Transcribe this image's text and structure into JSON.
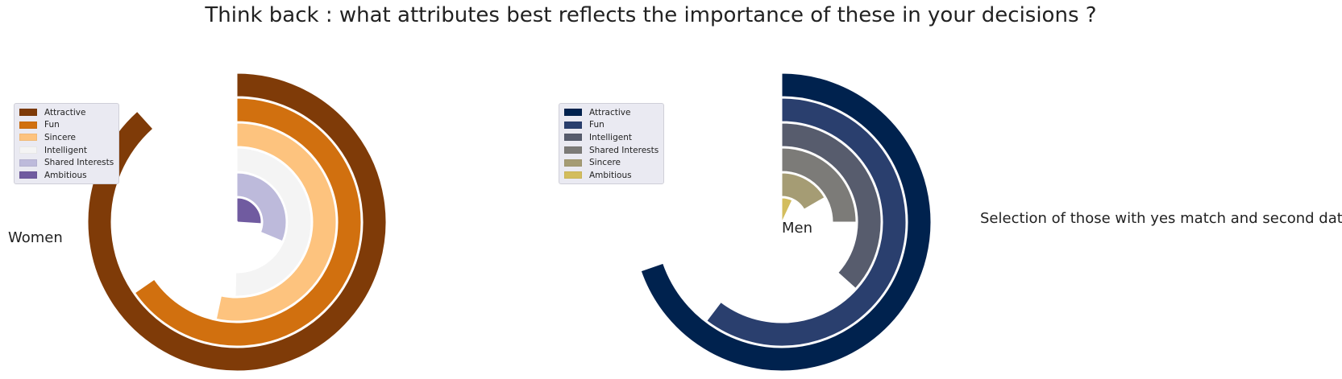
{
  "title": "Think back : what attributes best reflects the importance of these in your decisions ?",
  "side_note": "Selection of those with yes match and second date",
  "chart_data": [
    {
      "type": "radial_bar",
      "label": "Women",
      "categories": [
        "Attractive",
        "Fun",
        "Sincere",
        "Intelligent",
        "Shared Interests",
        "Ambitious"
      ],
      "values": [
        26.5,
        19.6,
        16.0,
        15.1,
        9.4,
        7.8
      ],
      "max_value": 30,
      "colors": [
        "#7f3b08",
        "#d1700f",
        "#fdc37e",
        "#f4f4f4",
        "#bdbadb",
        "#705ba0"
      ],
      "legend": {
        "placement": "upper-left"
      }
    },
    {
      "type": "radial_bar",
      "label": "Men",
      "categories": [
        "Attractive",
        "Fun",
        "Intelligent",
        "Shared Interests",
        "Sincere",
        "Ambitious"
      ],
      "values": [
        20.9,
        18.1,
        11.0,
        7.5,
        5.0,
        2.1
      ],
      "max_value": 30,
      "colors": [
        "#00224e",
        "#2a3f6e",
        "#575c6d",
        "#7c7b78",
        "#a59c74",
        "#d3bd5d"
      ],
      "legend": {
        "placement": "upper-left"
      }
    }
  ]
}
